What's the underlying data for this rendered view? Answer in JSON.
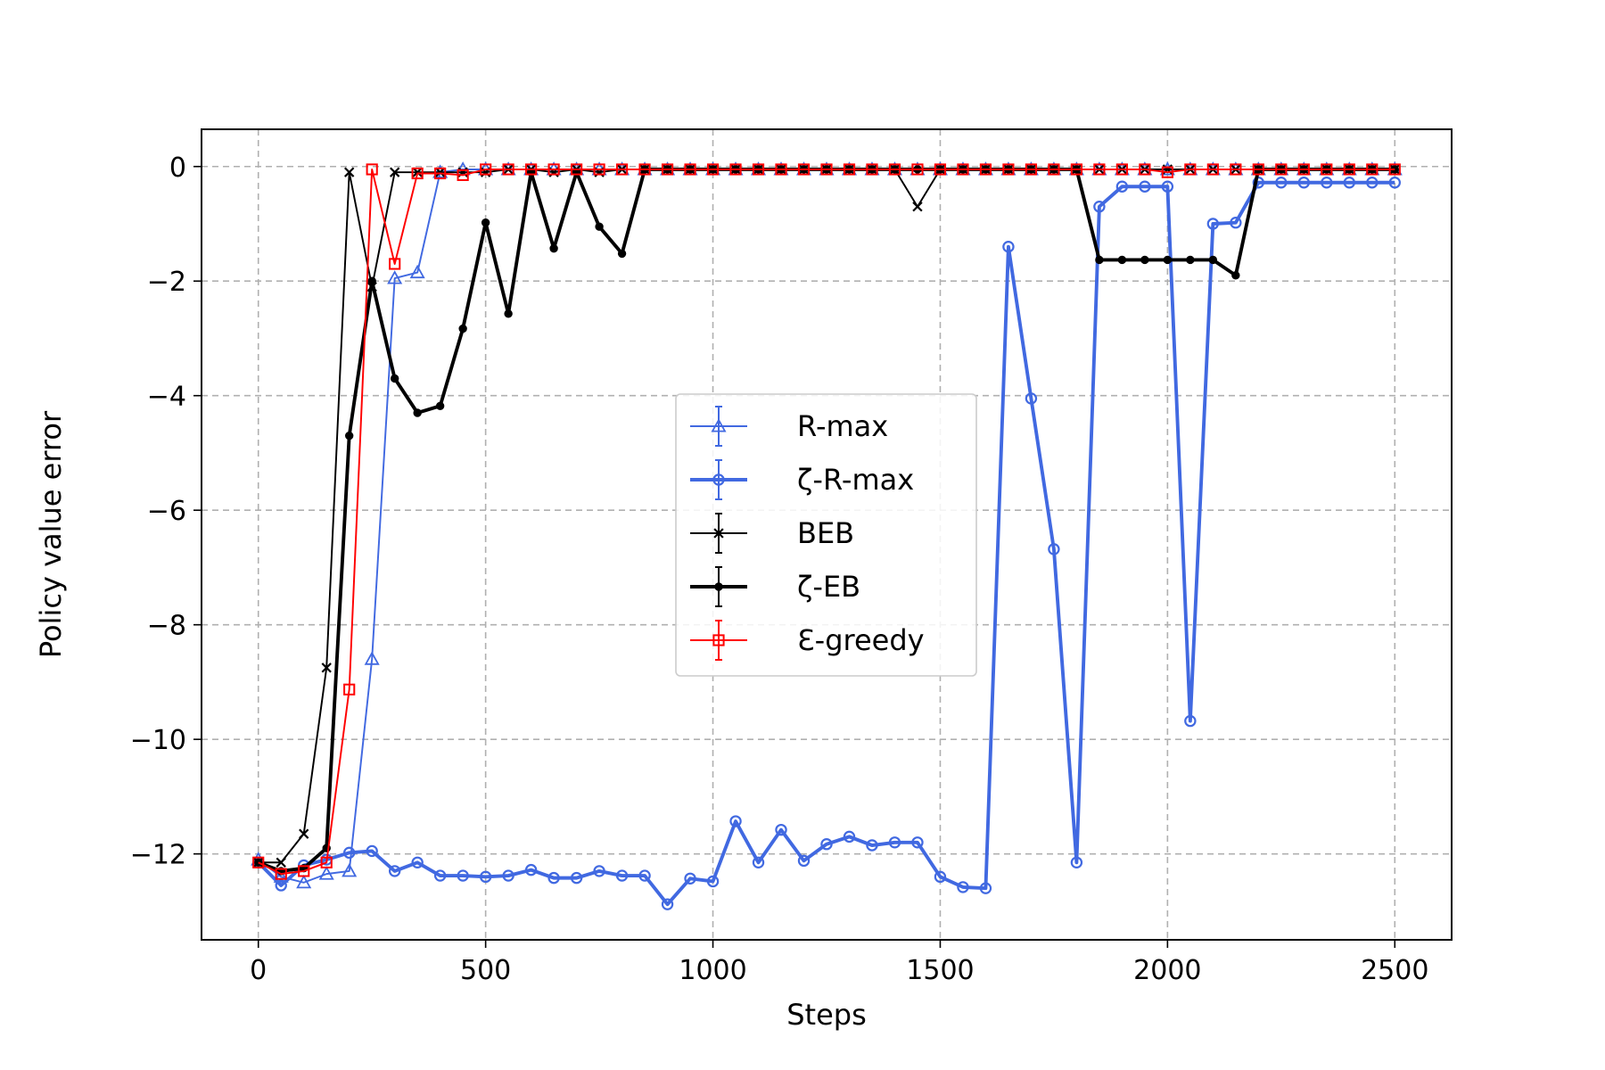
{
  "chart_data": {
    "type": "line",
    "title": "",
    "xlabel": "Steps",
    "ylabel": "Policy value error",
    "xlim": [
      -125,
      2625
    ],
    "ylim": [
      -13.5,
      0.65
    ],
    "xticks": [
      0,
      500,
      1000,
      1500,
      2000,
      2500
    ],
    "yticks": [
      0,
      -2,
      -4,
      -6,
      -8,
      -10,
      -12
    ],
    "xtick_labels": [
      "0",
      "500",
      "1000",
      "1500",
      "2000",
      "2500"
    ],
    "ytick_labels": [
      "0",
      "−2",
      "−4",
      "−6",
      "−8",
      "−10",
      "−12"
    ],
    "grid": true,
    "legend_position": "center",
    "x": [
      0,
      50,
      100,
      150,
      200,
      250,
      300,
      350,
      400,
      450,
      500,
      550,
      600,
      650,
      700,
      750,
      800,
      850,
      900,
      950,
      1000,
      1050,
      1100,
      1150,
      1200,
      1250,
      1300,
      1350,
      1400,
      1450,
      1500,
      1550,
      1600,
      1650,
      1700,
      1750,
      1800,
      1850,
      1900,
      1950,
      2000,
      2050,
      2100,
      2150,
      2200,
      2250,
      2300,
      2350,
      2400,
      2450,
      2500
    ],
    "series": [
      {
        "name": "R-max",
        "color": "#4169e1",
        "marker": "triangle",
        "line_width": 1.5,
        "values": [
          -12.1,
          -12.4,
          -12.5,
          -12.35,
          -12.3,
          -8.6,
          -1.95,
          -1.85,
          -0.1,
          -0.05,
          -0.05,
          -0.05,
          -0.05,
          -0.05,
          -0.05,
          -0.05,
          -0.05,
          -0.05,
          -0.05,
          -0.05,
          -0.05,
          -0.05,
          -0.05,
          -0.05,
          -0.05,
          -0.05,
          -0.05,
          -0.05,
          -0.05,
          -0.05,
          -0.05,
          -0.05,
          -0.05,
          -0.05,
          -0.05,
          -0.05,
          -0.05,
          -0.05,
          -0.05,
          -0.05,
          -0.05,
          -0.05,
          -0.05,
          -0.05,
          -0.05,
          -0.05,
          -0.05,
          -0.05,
          -0.05,
          -0.05,
          -0.05
        ]
      },
      {
        "name": "ζ-R-max",
        "color": "#4169e1",
        "marker": "circle",
        "line_width": 3,
        "values": [
          -12.15,
          -12.55,
          -12.2,
          -12.1,
          -11.98,
          -11.95,
          -12.3,
          -12.15,
          -12.38,
          -12.38,
          -12.4,
          -12.38,
          -12.28,
          -12.42,
          -12.42,
          -12.3,
          -12.38,
          -12.38,
          -12.88,
          -12.43,
          -12.48,
          -11.43,
          -12.15,
          -11.58,
          -12.12,
          -11.83,
          -11.7,
          -11.85,
          -11.8,
          -11.8,
          -12.4,
          -12.58,
          -12.6,
          -1.4,
          -4.05,
          -6.68,
          -12.15,
          -0.7,
          -0.35,
          -0.35,
          -0.35,
          -9.68,
          -1.0,
          -0.98,
          -0.28,
          -0.28,
          -0.28,
          -0.28,
          -0.28,
          -0.28,
          -0.28
        ]
      },
      {
        "name": "BEB",
        "color": "#000000",
        "marker": "x",
        "line_width": 1.5,
        "values": [
          -12.15,
          -12.15,
          -11.65,
          -8.75,
          -0.1,
          -2.1,
          -0.1,
          -0.1,
          -0.1,
          -0.1,
          -0.1,
          -0.05,
          -0.05,
          -0.1,
          -0.05,
          -0.1,
          -0.05,
          -0.05,
          -0.05,
          -0.05,
          -0.05,
          -0.05,
          -0.05,
          -0.05,
          -0.05,
          -0.05,
          -0.05,
          -0.05,
          -0.05,
          -0.7,
          -0.05,
          -0.05,
          -0.05,
          -0.05,
          -0.05,
          -0.05,
          -0.05,
          -0.05,
          -0.05,
          -0.05,
          -0.05,
          -0.05,
          -0.05,
          -0.05,
          -0.05,
          -0.05,
          -0.05,
          -0.05,
          -0.05,
          -0.05,
          -0.05
        ]
      },
      {
        "name": "ζ-EB",
        "color": "#000000",
        "marker": "dot",
        "line_width": 3,
        "values": [
          -12.15,
          -12.3,
          -12.25,
          -11.9,
          -4.7,
          -2.0,
          -3.7,
          -4.3,
          -4.18,
          -2.83,
          -0.98,
          -2.57,
          -0.1,
          -1.43,
          -0.1,
          -1.05,
          -1.52,
          -0.05,
          -0.05,
          -0.05,
          -0.05,
          -0.05,
          -0.05,
          -0.05,
          -0.05,
          -0.05,
          -0.05,
          -0.05,
          -0.05,
          -0.05,
          -0.05,
          -0.05,
          -0.05,
          -0.05,
          -0.05,
          -0.05,
          -0.05,
          -1.63,
          -1.63,
          -1.63,
          -1.63,
          -1.63,
          -1.63,
          -1.9,
          -0.05,
          -0.05,
          -0.05,
          -0.05,
          -0.05,
          -0.05,
          -0.05
        ]
      },
      {
        "name": "Ɛ-greedy",
        "color": "#ff0000",
        "marker": "square",
        "line_width": 1.5,
        "values": [
          -12.15,
          -12.35,
          -12.3,
          -12.15,
          -9.13,
          -0.05,
          -1.7,
          -0.12,
          -0.12,
          -0.15,
          -0.05,
          -0.05,
          -0.05,
          -0.05,
          -0.05,
          -0.05,
          -0.05,
          -0.05,
          -0.05,
          -0.05,
          -0.05,
          -0.05,
          -0.05,
          -0.05,
          -0.05,
          -0.05,
          -0.05,
          -0.05,
          -0.05,
          -0.05,
          -0.05,
          -0.05,
          -0.05,
          -0.05,
          -0.05,
          -0.05,
          -0.05,
          -0.05,
          -0.05,
          -0.05,
          -0.1,
          -0.05,
          -0.05,
          -0.05,
          -0.05,
          -0.05,
          -0.05,
          -0.05,
          -0.05,
          -0.05,
          -0.05
        ]
      }
    ]
  }
}
